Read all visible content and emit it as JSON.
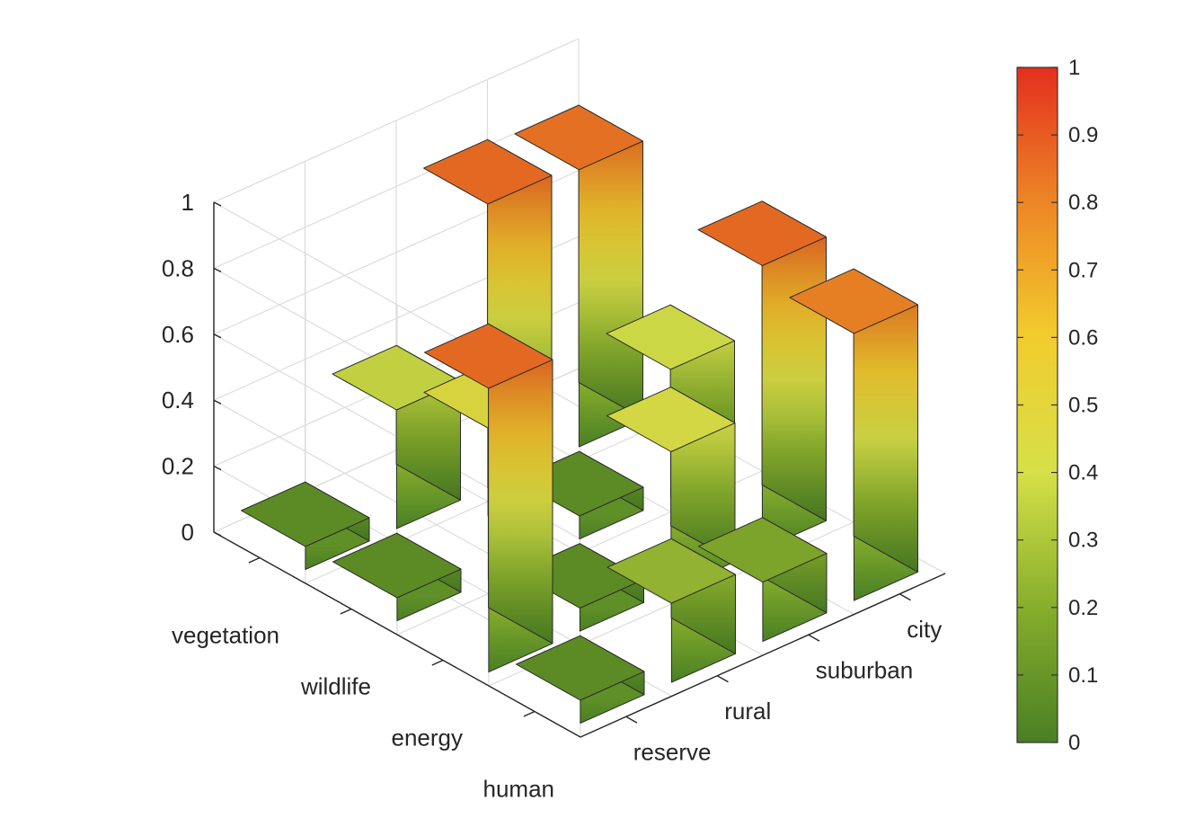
{
  "chart_data": {
    "type": "bar3d",
    "rows": [
      "vegetation",
      "wildlife",
      "energy",
      "human"
    ],
    "columns": [
      "reserve",
      "rural",
      "suburban",
      "city"
    ],
    "values": [
      [
        0.07,
        0.36,
        0.86,
        0.84
      ],
      [
        0.07,
        0.46,
        0.07,
        0.39
      ],
      [
        0.86,
        0.07,
        0.42,
        0.86
      ],
      [
        0.07,
        0.24,
        0.18,
        0.81
      ]
    ],
    "zlim": [
      0,
      1
    ],
    "zticks": [
      "0",
      "0.2",
      "0.4",
      "0.6",
      "0.8",
      "1"
    ],
    "colorbar": {
      "ticks": [
        "0",
        "0.1",
        "0.2",
        "0.3",
        "0.4",
        "0.5",
        "0.6",
        "0.7",
        "0.8",
        "0.9",
        "1"
      ],
      "colors": [
        "#4a7f24",
        "#86ae2c",
        "#d6e048",
        "#f2cc2e",
        "#ed8625",
        "#e42f1f"
      ]
    },
    "grid": true,
    "colormap": "green-yellow-red"
  }
}
